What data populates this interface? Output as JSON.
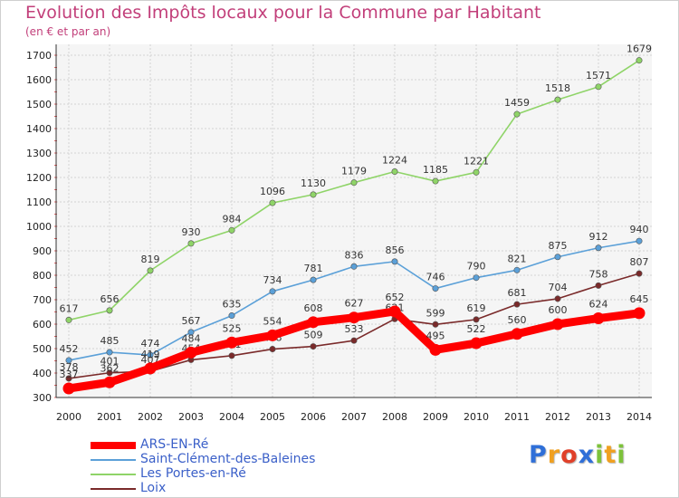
{
  "chart_data": {
    "type": "line",
    "title": "Evolution des Impôts locaux pour la Commune par Habitant",
    "subtitle": "(en € et par an)",
    "x": [
      "2000",
      "2001",
      "2002",
      "2003",
      "2004",
      "2005",
      "2006",
      "2007",
      "2008",
      "2009",
      "2010",
      "2011",
      "2012",
      "2013",
      "2014"
    ],
    "yticks": [
      300,
      400,
      500,
      600,
      700,
      800,
      900,
      1000,
      1100,
      1200,
      1300,
      1400,
      1500,
      1600,
      1700
    ],
    "ylim": [
      300,
      1700
    ],
    "grid": true,
    "legend": "bottom-left",
    "series": [
      {
        "name": "ARS-EN-Ré",
        "color": "#ff0000",
        "values": [
          337,
          362,
          419,
          484,
          525,
          554,
          608,
          627,
          652,
          495,
          522,
          560,
          600,
          624,
          645
        ]
      },
      {
        "name": "Saint-Clément-des-Baleines",
        "color": "#5ba0d8",
        "values": [
          452,
          485,
          474,
          567,
          635,
          734,
          781,
          836,
          856,
          746,
          790,
          821,
          875,
          912,
          940
        ]
      },
      {
        "name": "Les Portes-en-Ré",
        "color": "#8fd468",
        "values": [
          617,
          656,
          819,
          930,
          984,
          1096,
          1130,
          1179,
          1224,
          1185,
          1221,
          1459,
          1518,
          1571,
          1679
        ]
      },
      {
        "name": "Loix",
        "color": "#7a2a2a",
        "values": [
          378,
          401,
          407,
          454,
          471,
          498,
          509,
          533,
          621,
          599,
          619,
          681,
          704,
          758,
          807
        ]
      }
    ]
  },
  "brand": {
    "letters": [
      {
        "ch": "P",
        "color": "#2f6fd8"
      },
      {
        "ch": "r",
        "color": "#f0a020"
      },
      {
        "ch": "o",
        "color": "#e0402a"
      },
      {
        "ch": "x",
        "color": "#2f6fd8"
      },
      {
        "ch": "i",
        "color": "#7dc23a"
      },
      {
        "ch": "t",
        "color": "#f0a020"
      },
      {
        "ch": "i",
        "color": "#7dc23a"
      }
    ]
  }
}
